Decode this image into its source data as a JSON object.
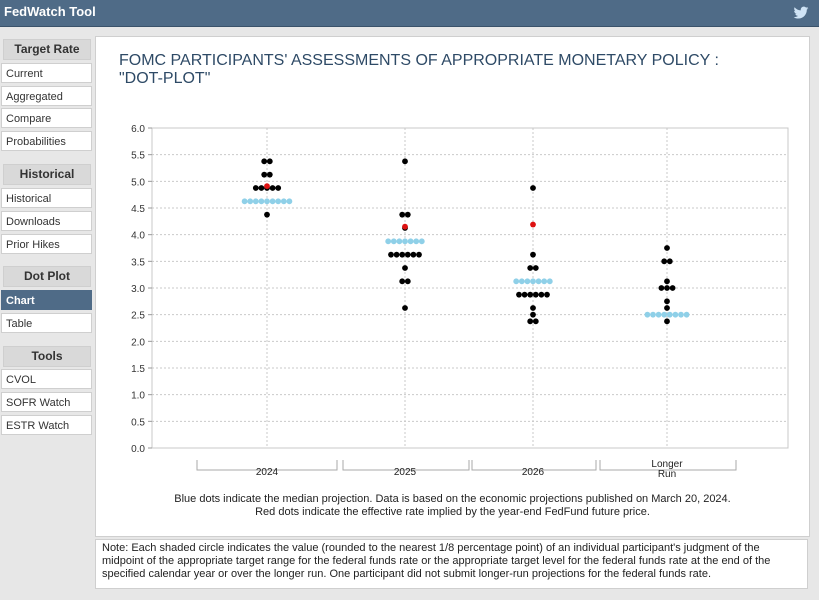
{
  "app": {
    "title": "FedWatch Tool"
  },
  "sidebar": {
    "sections": [
      {
        "heading": "Target Rate",
        "items": [
          "Current",
          "Aggregated",
          "Compare",
          "Probabilities"
        ]
      },
      {
        "heading": "Historical",
        "items": [
          "Historical",
          "Downloads",
          "Prior Hikes"
        ]
      },
      {
        "heading": "Dot Plot",
        "items": [
          "Chart",
          "Table"
        ]
      },
      {
        "heading": "Tools",
        "items": [
          "CVOL",
          "SOFR Watch",
          "ESTR Watch"
        ]
      }
    ],
    "active_item": "Chart"
  },
  "chart": {
    "title_line1": "FOMC PARTICIPANTS' ASSESSMENTS OF APPROPRIATE MONETARY POLICY :",
    "title_line2": "\"DOT-PLOT\"",
    "caption_line1": "Blue dots indicate the median projection. Data is based on the economic projections published on March 20, 2024.",
    "caption_line2": "Red dots indicate the effective rate implied by the year-end FedFund future price."
  },
  "note": "Note: Each shaded circle indicates the value (rounded to the nearest 1/8 percentage point) of an individual participant's judgment of the midpoint of the appropriate target range for the federal funds rate or the appropriate target level for the federal funds rate at the end of the specified calendar year or over the longer run. One participant did not submit longer-run projections for the federal funds rate.",
  "colors": {
    "median": "#8fd0e8",
    "participant": "#000000",
    "implied": "#dd1111",
    "accent": "#4f6b87"
  },
  "chart_data": {
    "type": "scatter",
    "title": "FOMC PARTICIPANTS' ASSESSMENTS OF APPROPRIATE MONETARY POLICY : \"DOT-PLOT\"",
    "categories": [
      "2024",
      "2025",
      "2026",
      "Longer Run"
    ],
    "y_ticks": [
      "0.0",
      "0.5",
      "1.0",
      "1.5",
      "2.0",
      "2.5",
      "3.0",
      "3.5",
      "4.0",
      "4.5",
      "5.0",
      "5.5",
      "6.0"
    ],
    "ylim": [
      0,
      6
    ],
    "grid": true,
    "participant_dots": [
      {
        "category": "2024",
        "points": [
          {
            "y": 5.375,
            "n": 2
          },
          {
            "y": 5.125,
            "n": 2
          },
          {
            "y": 4.875,
            "n": 5
          },
          {
            "y": 4.375,
            "n": 1
          }
        ]
      },
      {
        "category": "2025",
        "points": [
          {
            "y": 5.375,
            "n": 1
          },
          {
            "y": 4.375,
            "n": 2
          },
          {
            "y": 4.125,
            "n": 1
          },
          {
            "y": 3.625,
            "n": 6
          },
          {
            "y": 3.375,
            "n": 1
          },
          {
            "y": 3.125,
            "n": 2
          },
          {
            "y": 2.625,
            "n": 1
          }
        ]
      },
      {
        "category": "2026",
        "points": [
          {
            "y": 4.875,
            "n": 1
          },
          {
            "y": 3.625,
            "n": 1
          },
          {
            "y": 3.375,
            "n": 2
          },
          {
            "y": 2.875,
            "n": 6
          },
          {
            "y": 2.625,
            "n": 1
          },
          {
            "y": 2.5,
            "n": 1
          },
          {
            "y": 2.375,
            "n": 2
          }
        ]
      },
      {
        "category": "Longer Run",
        "points": [
          {
            "y": 3.75,
            "n": 1
          },
          {
            "y": 3.5,
            "n": 2
          },
          {
            "y": 3.125,
            "n": 1
          },
          {
            "y": 3.0,
            "n": 3
          },
          {
            "y": 2.75,
            "n": 1
          },
          {
            "y": 2.625,
            "n": 1
          },
          {
            "y": 2.375,
            "n": 1
          }
        ]
      }
    ],
    "median_dots": [
      {
        "category": "2024",
        "y": 4.625,
        "n": 9
      },
      {
        "category": "2025",
        "y": 3.875,
        "n": 7
      },
      {
        "category": "2026",
        "y": 3.125,
        "n": 7
      },
      {
        "category": "Longer Run",
        "y": 2.5,
        "n": 8
      }
    ],
    "implied_dots": [
      {
        "category": "2024",
        "y": 4.91
      },
      {
        "category": "2025",
        "y": 4.15
      },
      {
        "category": "2026",
        "y": 4.19
      }
    ]
  }
}
